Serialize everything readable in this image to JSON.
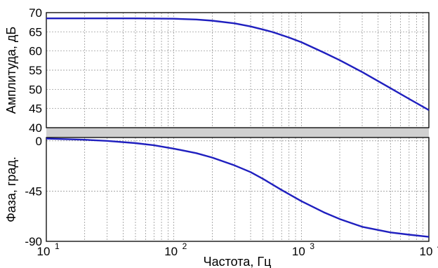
{
  "chart_data": [
    {
      "type": "line",
      "ylabel": "Амплитуда, дБ",
      "xscale": "log",
      "xlim": [
        10,
        10000
      ],
      "ylim": [
        40,
        70
      ],
      "yticks": [
        40,
        45,
        50,
        55,
        60,
        65,
        70
      ],
      "ytick_labels": [
        "40",
        "45",
        "50",
        "55",
        "60",
        "65",
        "70"
      ],
      "grid": true,
      "line_color": "#1f1fbf",
      "series": [
        {
          "x": [
            10,
            20,
            50,
            100,
            150,
            200,
            300,
            400,
            500,
            600,
            800,
            1000,
            1500,
            2000,
            3000,
            5000,
            7000,
            10000
          ],
          "y": [
            68.5,
            68.5,
            68.5,
            68.4,
            68.2,
            67.9,
            67.2,
            66.4,
            65.6,
            64.9,
            63.5,
            62.3,
            59.6,
            57.6,
            54.5,
            50.3,
            47.5,
            44.6
          ]
        }
      ]
    },
    {
      "type": "line",
      "ylabel": "Фаза, град.",
      "xlabel": "Частота, Гц",
      "xscale": "log",
      "xlim": [
        10,
        10000
      ],
      "ylim": [
        -90,
        3
      ],
      "yticks": [
        0,
        -45,
        -90
      ],
      "ytick_labels": [
        "0",
        "-45",
        "-90"
      ],
      "xtick_labels": [
        {
          "base": "10",
          "exp": "1"
        },
        {
          "base": "10",
          "exp": "2"
        },
        {
          "base": "10",
          "exp": "3"
        },
        {
          "base": "10",
          "exp": "4"
        }
      ],
      "grid": true,
      "line_color": "#1f1fbf",
      "series": [
        {
          "x": [
            10,
            20,
            30,
            50,
            70,
            100,
            150,
            200,
            300,
            400,
            500,
            700,
            1000,
            1500,
            2000,
            3000,
            5000,
            7000,
            10000
          ],
          "y": [
            2,
            1,
            0,
            -2,
            -4,
            -7,
            -11,
            -15,
            -22,
            -28,
            -34,
            -44,
            -54,
            -64,
            -70,
            -77,
            -82,
            -84,
            -86
          ]
        }
      ]
    }
  ]
}
